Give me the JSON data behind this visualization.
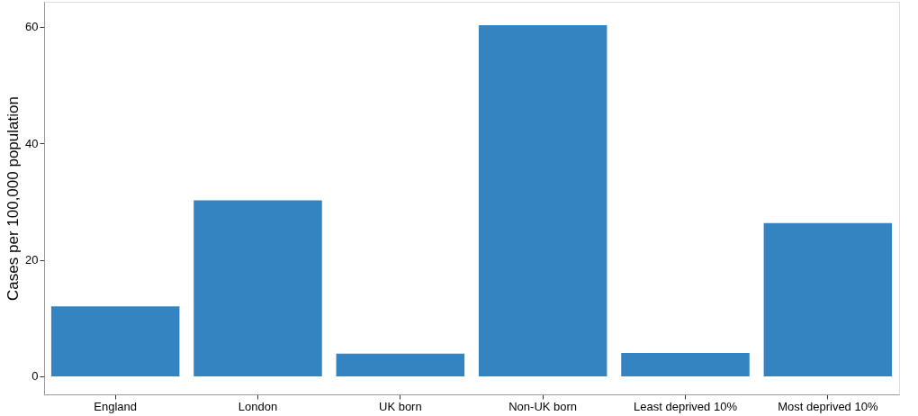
{
  "chart_data": {
    "type": "bar",
    "ylabel": "Cases per 100,000 population",
    "categories": [
      "England",
      "London",
      "UK born",
      "Non-UK born",
      "Least deprived 10%",
      "Most deprived 10%"
    ],
    "values": [
      12,
      30.2,
      3.9,
      60.3,
      4.0,
      26.3
    ],
    "color": "#3384c0",
    "ylim": [
      -3.1,
      64.3
    ],
    "yticks": [
      0,
      20,
      40,
      60
    ],
    "grid": false
  }
}
